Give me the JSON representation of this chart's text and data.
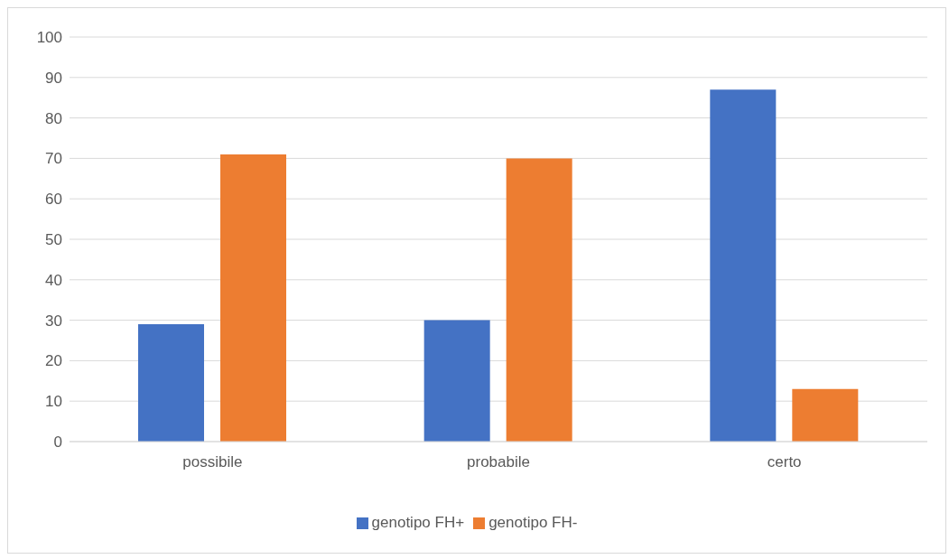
{
  "chart_data": {
    "type": "bar",
    "categories": [
      "possibile",
      "probabile",
      "certo"
    ],
    "series": [
      {
        "name": "genotipo FH+",
        "color": "#4472c4",
        "values": [
          29,
          30,
          87
        ]
      },
      {
        "name": "genotipo FH-",
        "color": "#ed7d31",
        "values": [
          71,
          70,
          13
        ]
      }
    ],
    "ylim": [
      0,
      100
    ],
    "yticks": [
      0,
      10,
      20,
      30,
      40,
      50,
      60,
      70,
      80,
      90,
      100
    ],
    "grid": "y",
    "legend": "bottom"
  }
}
